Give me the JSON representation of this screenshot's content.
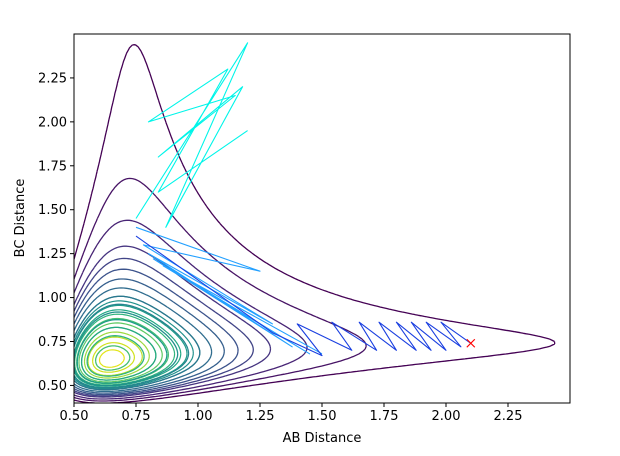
{
  "chart_data": {
    "type": "contour",
    "title": "",
    "xlabel": "AB Distance",
    "ylabel": "BC Distance",
    "xlim": [
      0.5,
      2.5
    ],
    "ylim": [
      0.4,
      2.5
    ],
    "xticks": [
      0.5,
      0.75,
      1.0,
      1.25,
      1.5,
      1.75,
      2.0,
      2.25
    ],
    "xtick_labels": [
      "0.50",
      "0.75",
      "1.00",
      "1.25",
      "1.50",
      "1.75",
      "2.00",
      "2.25"
    ],
    "yticks": [
      0.5,
      0.75,
      1.0,
      1.25,
      1.5,
      1.75,
      2.0,
      2.25
    ],
    "ytick_labels": [
      "0.50",
      "0.75",
      "1.00",
      "1.25",
      "1.50",
      "1.75",
      "2.00",
      "2.25"
    ],
    "grid": false,
    "legend": "none",
    "colormap": "viridis",
    "contour_levels": [
      {
        "c": 0.9,
        "color": "#440154"
      },
      {
        "c": 0.58,
        "color": "#471365"
      },
      {
        "c": 0.32,
        "color": "#482475"
      },
      {
        "c": 0.08,
        "color": "#463480"
      },
      {
        "c": -0.06,
        "color": "#414487"
      },
      {
        "c": -0.2,
        "color": "#3b528b"
      },
      {
        "c": -0.34,
        "color": "#355f8d"
      },
      {
        "c": -0.48,
        "color": "#2f6c8e"
      },
      {
        "c": -0.62,
        "color": "#2a788e"
      },
      {
        "c": -0.76,
        "color": "#25848e"
      },
      {
        "c": -0.9,
        "color": "#21918c"
      },
      {
        "c": -1.04,
        "color": "#1e9c89"
      },
      {
        "c": -1.18,
        "color": "#22a884"
      },
      {
        "c": -1.32,
        "color": "#2fb47c"
      },
      {
        "c": -1.46,
        "color": "#44bf70"
      },
      {
        "c": -1.6,
        "color": "#5ec962"
      },
      {
        "c": -1.74,
        "color": "#7ad151"
      },
      {
        "c": -1.88,
        "color": "#9bd93c"
      },
      {
        "c": -2.02,
        "color": "#bddf26"
      }
    ],
    "wall_levels": [
      -0.62,
      -0.7,
      -0.78,
      -0.86,
      -0.94,
      -1.02,
      -1.1,
      -1.18,
      -1.26,
      -1.34,
      -1.42,
      -1.5,
      -1.58,
      -1.66,
      -1.74,
      -1.82,
      -1.9,
      -1.98,
      -2.06,
      -2.14
    ],
    "wall_colors": [
      "#25848e",
      "#21918c",
      "#1e9c89",
      "#22a884",
      "#2fb47c",
      "#44bf70",
      "#5ec962",
      "#7ad151",
      "#9bd93c",
      "#bddf26",
      "#d0e11c",
      "#e2e418",
      "#fde725"
    ],
    "trajectory": {
      "start": [
        0.75,
        1.45
      ],
      "end": [
        2.1,
        0.74
      ],
      "marker": "x",
      "marker_color": "#ff0000",
      "segments": [
        {
          "color": "#00f5e9",
          "points": [
            [
              0.75,
              1.45
            ],
            [
              1.2,
              2.45
            ],
            [
              0.87,
              1.4
            ],
            [
              1.18,
              2.2
            ],
            [
              0.84,
              1.8
            ],
            [
              1.15,
              2.15
            ],
            [
              0.8,
              2.0
            ],
            [
              1.12,
              2.3
            ],
            [
              0.84,
              1.6
            ],
            [
              1.2,
              1.95
            ]
          ]
        },
        {
          "color": "#23a0ff",
          "points": [
            [
              0.75,
              1.4
            ],
            [
              1.25,
              1.15
            ],
            [
              0.78,
              1.3
            ],
            [
              1.3,
              0.85
            ],
            [
              0.8,
              1.25
            ],
            [
              1.38,
              0.72
            ],
            [
              0.82,
              1.22
            ],
            [
              1.45,
              0.68
            ],
            [
              0.86,
              1.18
            ],
            [
              1.5,
              0.68
            ]
          ]
        },
        {
          "color": "#1a3fe0",
          "points": [
            [
              0.75,
              1.35
            ],
            [
              1.3,
              0.8
            ],
            [
              1.5,
              0.67
            ],
            [
              1.4,
              0.85
            ],
            [
              1.62,
              0.7
            ],
            [
              1.54,
              0.86
            ],
            [
              1.72,
              0.7
            ],
            [
              1.65,
              0.86
            ],
            [
              1.8,
              0.7
            ],
            [
              1.73,
              0.86
            ],
            [
              1.88,
              0.7
            ],
            [
              1.8,
              0.86
            ],
            [
              1.94,
              0.7
            ],
            [
              1.86,
              0.86
            ],
            [
              2.0,
              0.7
            ],
            [
              1.92,
              0.86
            ],
            [
              2.06,
              0.72
            ],
            [
              1.98,
              0.86
            ],
            [
              2.1,
              0.74
            ]
          ]
        }
      ]
    }
  }
}
